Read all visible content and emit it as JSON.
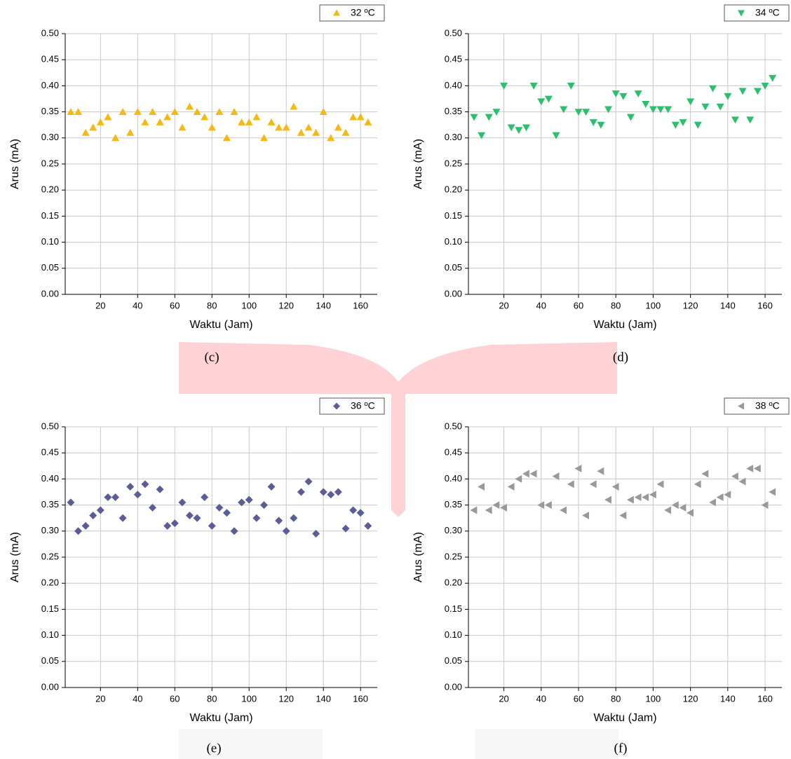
{
  "chart_data": [
    {
      "type": "scatter",
      "caption": "(c)",
      "x_label": "Waktu (Jam)",
      "y_label": "Arus (mA)",
      "legend": "top right",
      "grid": true,
      "xlim": [
        1,
        169
      ],
      "ylim": [
        0,
        0.5
      ],
      "xticks": [
        20,
        40,
        60,
        80,
        100,
        120,
        140,
        160
      ],
      "yticks": [
        {
          "value": 0,
          "label": "0.00"
        },
        0.05,
        {
          "value": 0.1,
          "label": "0.10"
        },
        0.15,
        {
          "value": 0.2,
          "label": "0.20"
        },
        0.25,
        {
          "value": 0.3,
          "label": "0.30"
        },
        0.35,
        {
          "value": 0.4,
          "label": "0.40"
        },
        0.45,
        {
          "value": 0.5,
          "label": "0.50"
        }
      ],
      "x": [
        4,
        8,
        12,
        16,
        20,
        24,
        28,
        32,
        36,
        40,
        44,
        48,
        52,
        56,
        60,
        64,
        68,
        72,
        76,
        80,
        84,
        88,
        92,
        96,
        100,
        104,
        108,
        112,
        116,
        120,
        124,
        128,
        132,
        136,
        140,
        144,
        148,
        152,
        156,
        160,
        164
      ],
      "series": [
        {
          "name": "32 ºC",
          "color": "#f4b914",
          "marker": "triangle-up",
          "values": [
            0.35,
            0.35,
            0.31,
            0.32,
            0.33,
            0.34,
            0.3,
            0.35,
            0.31,
            0.35,
            0.33,
            0.35,
            0.33,
            0.34,
            0.35,
            0.32,
            0.36,
            0.35,
            0.34,
            0.32,
            0.35,
            0.3,
            0.35,
            0.33,
            0.33,
            0.34,
            0.3,
            0.33,
            0.32,
            0.32,
            0.36,
            0.31,
            0.32,
            0.31,
            0.35,
            0.3,
            0.32,
            0.31,
            0.34,
            0.34,
            0.33
          ]
        }
      ]
    },
    {
      "type": "scatter",
      "caption": "(d)",
      "x_label": "Waktu (Jam)",
      "y_label": "Arus (mA)",
      "legend": "top right",
      "grid": true,
      "xlim": [
        1,
        169
      ],
      "ylim": [
        0,
        0.5
      ],
      "xticks": [
        20,
        40,
        60,
        80,
        100,
        120,
        140,
        160
      ],
      "yticks": [
        {
          "value": 0,
          "label": "0.00"
        },
        0.05,
        {
          "value": 0.1,
          "label": "0.10"
        },
        0.15,
        {
          "value": 0.2,
          "label": "0.20"
        },
        0.25,
        {
          "value": 0.3,
          "label": "0.30"
        },
        0.35,
        {
          "value": 0.4,
          "label": "0.40"
        },
        0.45,
        {
          "value": 0.5,
          "label": "0.50"
        }
      ],
      "x": [
        4,
        8,
        12,
        16,
        20,
        24,
        28,
        32,
        36,
        40,
        44,
        48,
        52,
        56,
        60,
        64,
        68,
        72,
        76,
        80,
        84,
        88,
        92,
        96,
        100,
        104,
        108,
        112,
        116,
        120,
        124,
        128,
        132,
        136,
        140,
        144,
        148,
        152,
        156,
        160,
        164
      ],
      "series": [
        {
          "name": "34 ºC",
          "color": "#2cbf6c",
          "marker": "triangle-down",
          "values": [
            0.34,
            0.305,
            0.34,
            0.35,
            0.4,
            0.32,
            0.315,
            0.32,
            0.4,
            0.37,
            0.375,
            0.305,
            0.355,
            0.4,
            0.35,
            0.35,
            0.33,
            0.325,
            0.355,
            0.385,
            0.38,
            0.34,
            0.385,
            0.365,
            0.355,
            0.355,
            0.355,
            0.325,
            0.33,
            0.37,
            0.325,
            0.36,
            0.395,
            0.36,
            0.38,
            0.335,
            0.39,
            0.335,
            0.39,
            0.4,
            0.415
          ]
        }
      ]
    },
    {
      "type": "scatter",
      "caption": "(e)",
      "x_label": "Waktu (Jam)",
      "y_label": "Arus (mA)",
      "legend": "top right",
      "grid": true,
      "xlim": [
        1,
        169
      ],
      "ylim": [
        0,
        0.5
      ],
      "xticks": [
        20,
        40,
        60,
        80,
        100,
        120,
        140,
        160
      ],
      "yticks": [
        {
          "value": 0,
          "label": "0.00"
        },
        0.05,
        {
          "value": 0.1,
          "label": "0.10"
        },
        0.15,
        {
          "value": 0.2,
          "label": "0.20"
        },
        0.25,
        {
          "value": 0.3,
          "label": "0.30"
        },
        0.35,
        {
          "value": 0.4,
          "label": "0.40"
        },
        0.45,
        {
          "value": 0.5,
          "label": "0.50"
        }
      ],
      "x": [
        4,
        8,
        12,
        16,
        20,
        24,
        28,
        32,
        36,
        40,
        44,
        48,
        52,
        56,
        60,
        64,
        68,
        72,
        76,
        80,
        84,
        88,
        92,
        96,
        100,
        104,
        108,
        112,
        116,
        120,
        124,
        128,
        132,
        136,
        140,
        144,
        148,
        152,
        156,
        160,
        164
      ],
      "series": [
        {
          "name": "36 ºC",
          "color": "#5b5e96",
          "marker": "diamond",
          "values": [
            0.355,
            0.3,
            0.31,
            0.33,
            0.34,
            0.365,
            0.365,
            0.325,
            0.385,
            0.37,
            0.39,
            0.345,
            0.38,
            0.31,
            0.315,
            0.355,
            0.33,
            0.325,
            0.365,
            0.31,
            0.345,
            0.335,
            0.3,
            0.355,
            0.36,
            0.325,
            0.35,
            0.385,
            0.32,
            0.3,
            0.325,
            0.375,
            0.395,
            0.295,
            0.375,
            0.37,
            0.375,
            0.305,
            0.34,
            0.335,
            0.31
          ]
        }
      ]
    },
    {
      "type": "scatter",
      "caption": "(f)",
      "x_label": "Waktu (Jam)",
      "y_label": "Arus (mA)",
      "legend": "top right",
      "grid": true,
      "xlim": [
        1,
        169
      ],
      "ylim": [
        0,
        0.5
      ],
      "xticks": [
        20,
        40,
        60,
        80,
        100,
        120,
        140,
        160
      ],
      "yticks": [
        {
          "value": 0,
          "label": "0.00"
        },
        0.05,
        {
          "value": 0.1,
          "label": "0.10"
        },
        0.15,
        {
          "value": 0.2,
          "label": "0.20"
        },
        0.25,
        {
          "value": 0.3,
          "label": "0.30"
        },
        0.35,
        {
          "value": 0.4,
          "label": "0.40"
        },
        0.45,
        {
          "value": 0.5,
          "label": "0.50"
        }
      ],
      "x": [
        4,
        8,
        12,
        16,
        20,
        24,
        28,
        32,
        36,
        40,
        44,
        48,
        52,
        56,
        60,
        64,
        68,
        72,
        76,
        80,
        84,
        88,
        92,
        96,
        100,
        104,
        108,
        112,
        116,
        120,
        124,
        128,
        132,
        136,
        140,
        144,
        148,
        152,
        156,
        160,
        164
      ],
      "series": [
        {
          "name": "38 ºC",
          "color": "#999999",
          "marker": "triangle-left",
          "values": [
            0.34,
            0.385,
            0.34,
            0.35,
            0.345,
            0.385,
            0.4,
            0.41,
            0.41,
            0.35,
            0.35,
            0.405,
            0.34,
            0.39,
            0.42,
            0.33,
            0.39,
            0.415,
            0.36,
            0.385,
            0.33,
            0.36,
            0.365,
            0.365,
            0.37,
            0.39,
            0.34,
            0.35,
            0.345,
            0.335,
            0.39,
            0.41,
            0.355,
            0.365,
            0.37,
            0.405,
            0.395,
            0.42,
            0.42,
            0.35,
            0.375
          ]
        }
      ]
    }
  ]
}
